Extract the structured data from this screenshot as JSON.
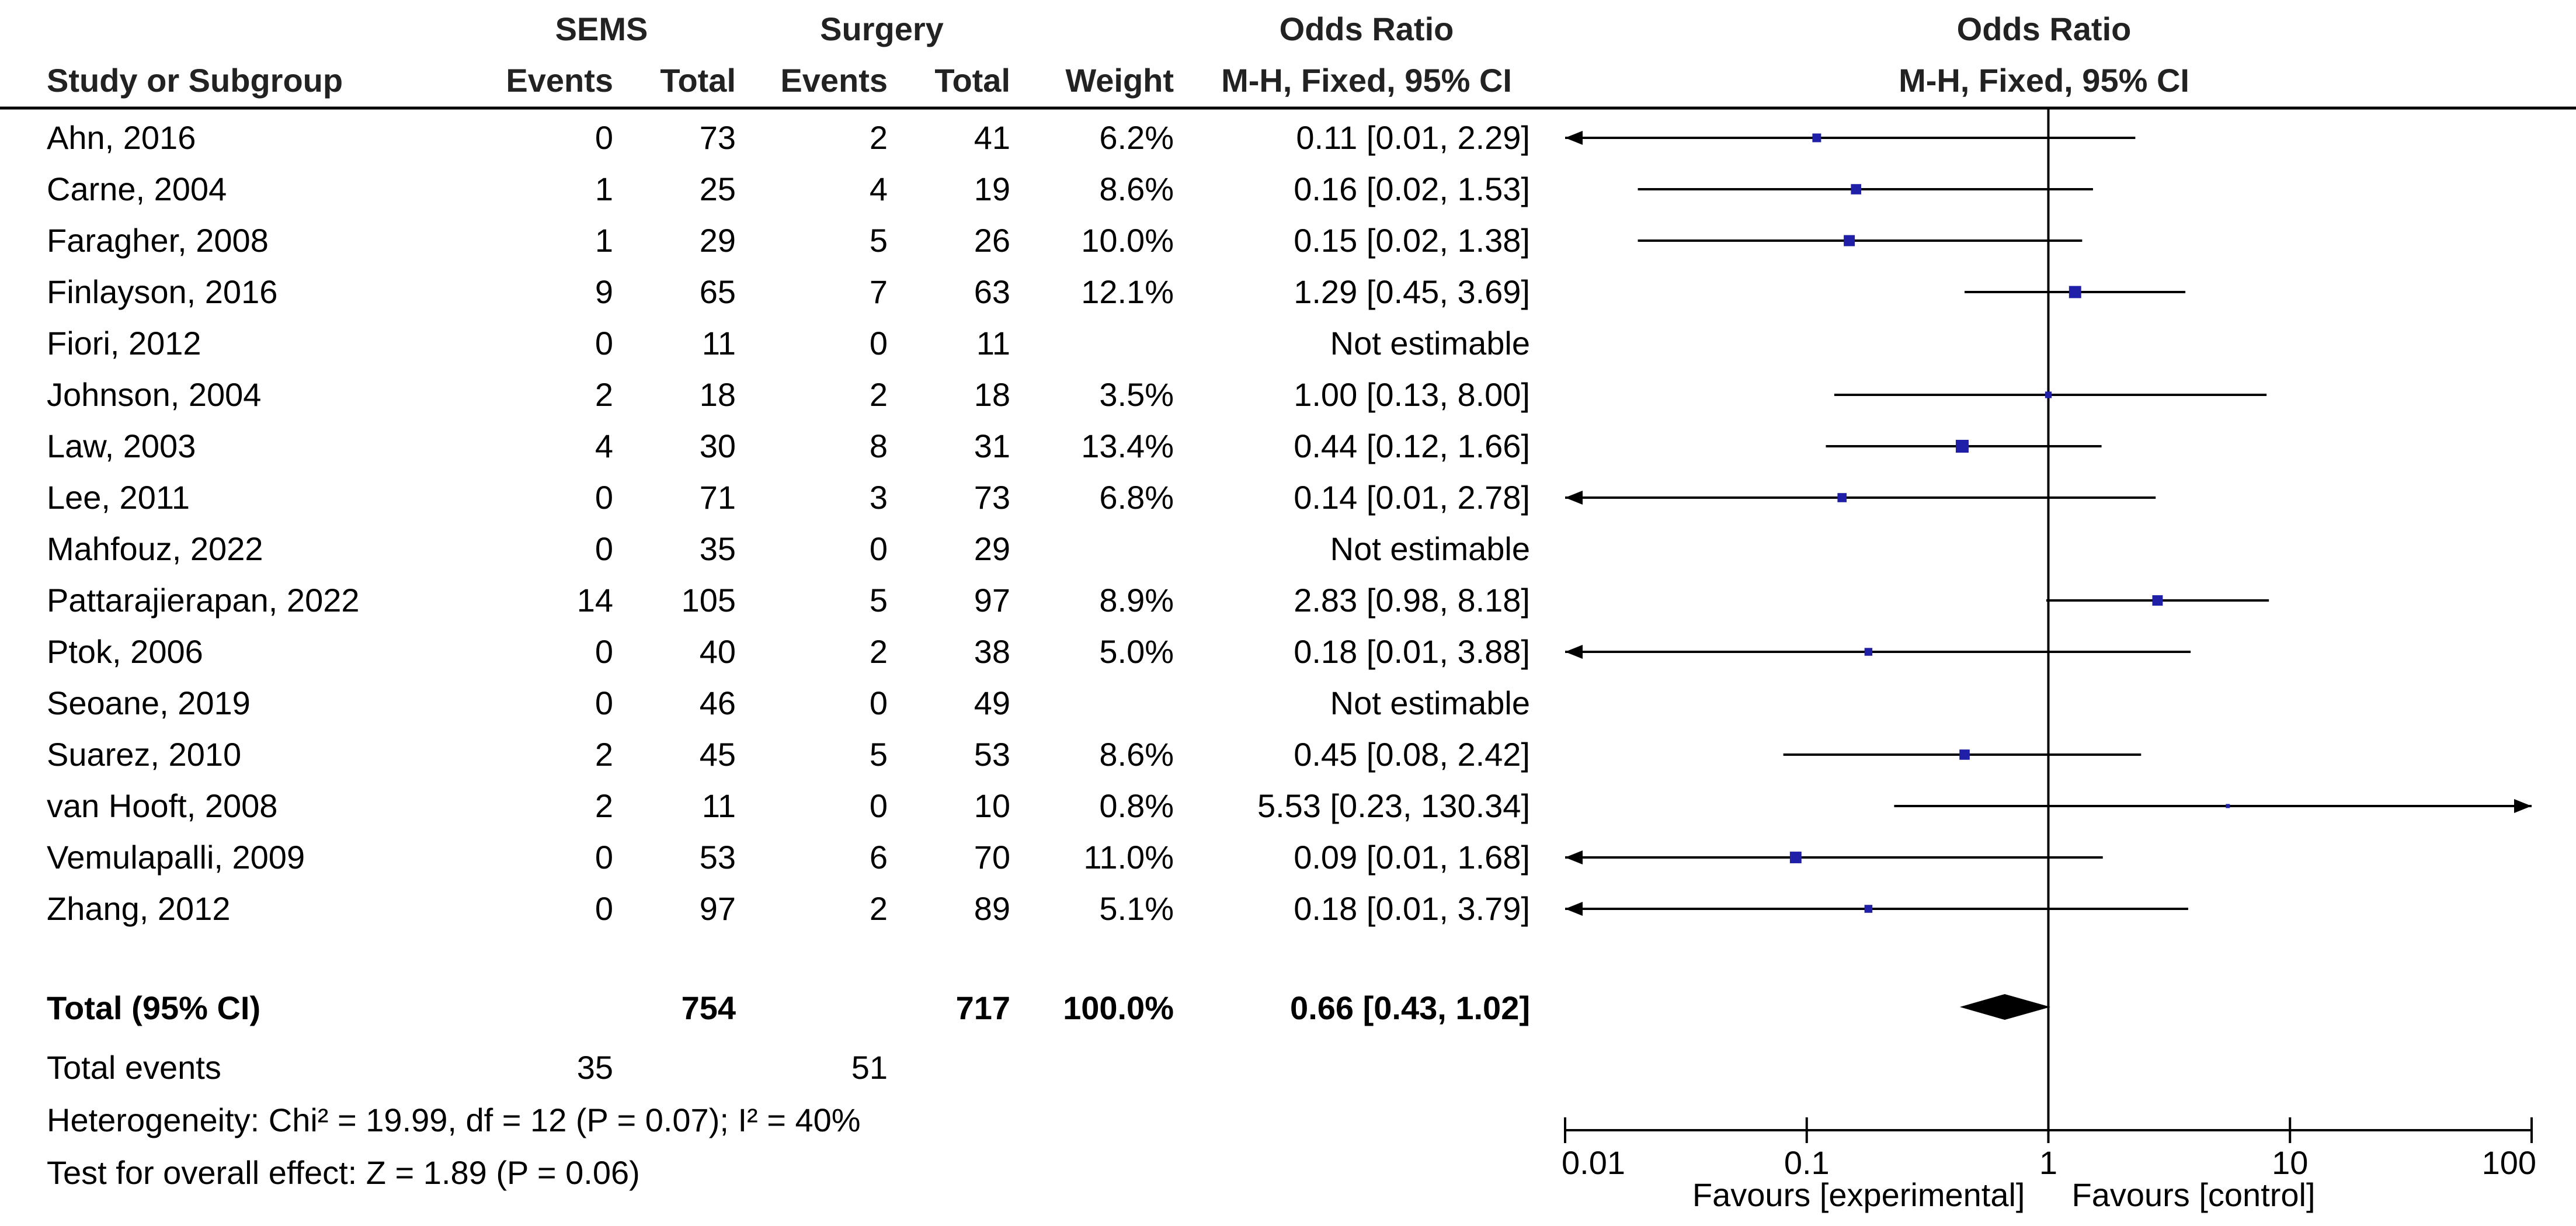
{
  "headers": {
    "group1": "SEMS",
    "group2": "Surgery",
    "or_table": "Odds Ratio",
    "or_plot": "Odds Ratio",
    "study": "Study or Subgroup",
    "events1": "Events",
    "total1": "Total",
    "events2": "Events",
    "total2": "Total",
    "weight": "Weight",
    "method": "M-H, Fixed, 95% CI",
    "method_plot": "M-H, Fixed, 95% CI"
  },
  "studies": [
    {
      "name": "Ahn, 2016",
      "e1": "0",
      "t1": "73",
      "e2": "2",
      "t2": "41",
      "weight": "6.2%",
      "ci": "0.11 [0.01, 2.29]"
    },
    {
      "name": "Carne, 2004",
      "e1": "1",
      "t1": "25",
      "e2": "4",
      "t2": "19",
      "weight": "8.6%",
      "ci": "0.16 [0.02, 1.53]"
    },
    {
      "name": "Faragher, 2008",
      "e1": "1",
      "t1": "29",
      "e2": "5",
      "t2": "26",
      "weight": "10.0%",
      "ci": "0.15 [0.02, 1.38]"
    },
    {
      "name": "Finlayson, 2016",
      "e1": "9",
      "t1": "65",
      "e2": "7",
      "t2": "63",
      "weight": "12.1%",
      "ci": "1.29 [0.45, 3.69]"
    },
    {
      "name": "Fiori, 2012",
      "e1": "0",
      "t1": "11",
      "e2": "0",
      "t2": "11",
      "weight": "",
      "ci": "Not estimable"
    },
    {
      "name": "Johnson, 2004",
      "e1": "2",
      "t1": "18",
      "e2": "2",
      "t2": "18",
      "weight": "3.5%",
      "ci": "1.00 [0.13, 8.00]"
    },
    {
      "name": "Law, 2003",
      "e1": "4",
      "t1": "30",
      "e2": "8",
      "t2": "31",
      "weight": "13.4%",
      "ci": "0.44 [0.12, 1.66]"
    },
    {
      "name": "Lee, 2011",
      "e1": "0",
      "t1": "71",
      "e2": "3",
      "t2": "73",
      "weight": "6.8%",
      "ci": "0.14 [0.01, 2.78]"
    },
    {
      "name": "Mahfouz, 2022",
      "e1": "0",
      "t1": "35",
      "e2": "0",
      "t2": "29",
      "weight": "",
      "ci": "Not estimable"
    },
    {
      "name": "Pattarajierapan, 2022",
      "e1": "14",
      "t1": "105",
      "e2": "5",
      "t2": "97",
      "weight": "8.9%",
      "ci": "2.83 [0.98, 8.18]"
    },
    {
      "name": "Ptok, 2006",
      "e1": "0",
      "t1": "40",
      "e2": "2",
      "t2": "38",
      "weight": "5.0%",
      "ci": "0.18 [0.01, 3.88]"
    },
    {
      "name": "Seoane, 2019",
      "e1": "0",
      "t1": "46",
      "e2": "0",
      "t2": "49",
      "weight": "",
      "ci": "Not estimable"
    },
    {
      "name": "Suarez, 2010",
      "e1": "2",
      "t1": "45",
      "e2": "5",
      "t2": "53",
      "weight": "8.6%",
      "ci": "0.45 [0.08, 2.42]"
    },
    {
      "name": "van Hooft, 2008",
      "e1": "2",
      "t1": "11",
      "e2": "0",
      "t2": "10",
      "weight": "0.8%",
      "ci": "5.53 [0.23, 130.34]"
    },
    {
      "name": "Vemulapalli, 2009",
      "e1": "0",
      "t1": "53",
      "e2": "6",
      "t2": "70",
      "weight": "11.0%",
      "ci": "0.09 [0.01, 1.68]"
    },
    {
      "name": "Zhang, 2012",
      "e1": "0",
      "t1": "97",
      "e2": "2",
      "t2": "89",
      "weight": "5.1%",
      "ci": "0.18 [0.01, 3.79]"
    }
  ],
  "total": {
    "label": "Total (95% CI)",
    "t1": "754",
    "t2": "717",
    "weight": "100.0%",
    "ci": "0.66 [0.43, 1.02]"
  },
  "events": {
    "label": "Total events",
    "e1": "35",
    "e2": "51"
  },
  "heterogeneity": "Heterogeneity: Chi² = 19.99, df = 12 (P = 0.07); I² = 40%",
  "overall_test": "Test for overall effect: Z = 1.89 (P = 0.06)",
  "axis": {
    "ticks": [
      "0.01",
      "0.1",
      "1",
      "10",
      "100"
    ],
    "favours_left": "Favours [experimental]",
    "favours_right": "Favours [control]"
  },
  "colors": {
    "marker": "#1f1fa8",
    "line": "#000000",
    "diamond": "#000000"
  },
  "chart_data": {
    "type": "forest",
    "title": "Odds Ratio M-H, Fixed, 95% CI",
    "xscale": "log",
    "xlim": [
      0.01,
      100
    ],
    "reference_line": 1,
    "points": [
      {
        "study": "Ahn, 2016",
        "or": 0.11,
        "lo": 0.01,
        "hi": 2.29,
        "weight": 6.2
      },
      {
        "study": "Carne, 2004",
        "or": 0.16,
        "lo": 0.02,
        "hi": 1.53,
        "weight": 8.6
      },
      {
        "study": "Faragher, 2008",
        "or": 0.15,
        "lo": 0.02,
        "hi": 1.38,
        "weight": 10.0
      },
      {
        "study": "Finlayson, 2016",
        "or": 1.29,
        "lo": 0.45,
        "hi": 3.69,
        "weight": 12.1
      },
      {
        "study": "Fiori, 2012",
        "or": null,
        "lo": null,
        "hi": null,
        "weight": null
      },
      {
        "study": "Johnson, 2004",
        "or": 1.0,
        "lo": 0.13,
        "hi": 8.0,
        "weight": 3.5
      },
      {
        "study": "Law, 2003",
        "or": 0.44,
        "lo": 0.12,
        "hi": 1.66,
        "weight": 13.4
      },
      {
        "study": "Lee, 2011",
        "or": 0.14,
        "lo": 0.01,
        "hi": 2.78,
        "weight": 6.8
      },
      {
        "study": "Mahfouz, 2022",
        "or": null,
        "lo": null,
        "hi": null,
        "weight": null
      },
      {
        "study": "Pattarajierapan, 2022",
        "or": 2.83,
        "lo": 0.98,
        "hi": 8.18,
        "weight": 8.9
      },
      {
        "study": "Ptok, 2006",
        "or": 0.18,
        "lo": 0.01,
        "hi": 3.88,
        "weight": 5.0
      },
      {
        "study": "Seoane, 2019",
        "or": null,
        "lo": null,
        "hi": null,
        "weight": null
      },
      {
        "study": "Suarez, 2010",
        "or": 0.45,
        "lo": 0.08,
        "hi": 2.42,
        "weight": 8.6
      },
      {
        "study": "van Hooft, 2008",
        "or": 5.53,
        "lo": 0.23,
        "hi": 130.34,
        "weight": 0.8
      },
      {
        "study": "Vemulapalli, 2009",
        "or": 0.09,
        "lo": 0.01,
        "hi": 1.68,
        "weight": 11.0
      },
      {
        "study": "Zhang, 2012",
        "or": 0.18,
        "lo": 0.01,
        "hi": 3.79,
        "weight": 5.1
      }
    ],
    "pooled": {
      "or": 0.66,
      "lo": 0.43,
      "hi": 1.02
    }
  }
}
